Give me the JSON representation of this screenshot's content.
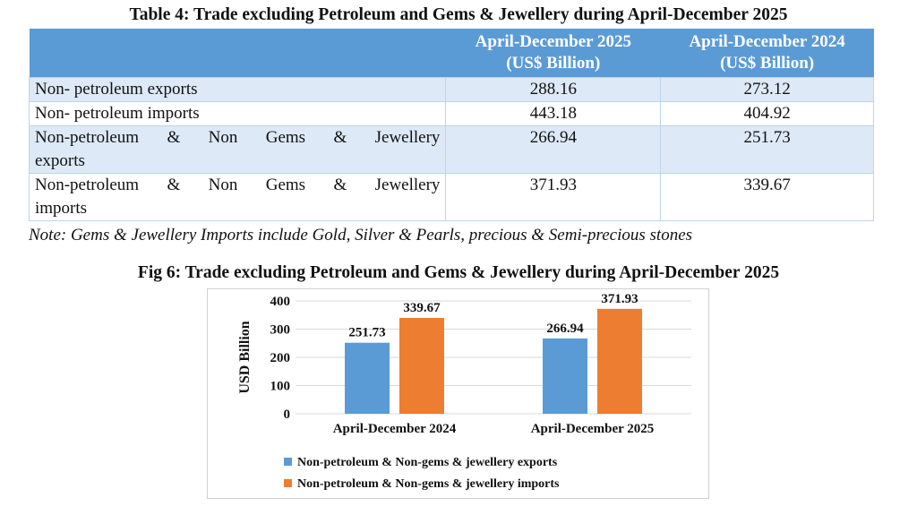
{
  "table": {
    "title": "Table 4: Trade excluding Petroleum and Gems & Jewellery during April-December 2025",
    "headers": [
      "",
      "April-December 2025",
      "April-December 2024"
    ],
    "header_unit": "(US$ Billion)",
    "rows": [
      {
        "label": "Non- petroleum exports",
        "v2025": "288.16",
        "v2024": "273.12"
      },
      {
        "label": "Non- petroleum imports",
        "v2025": "443.18",
        "v2024": "404.92"
      },
      {
        "label_line1": "Non-petroleum & Non Gems & Jewellery",
        "label_line2": "exports",
        "v2025": "266.94",
        "v2024": "251.73"
      },
      {
        "label_line1": "Non-petroleum & Non Gems & Jewellery",
        "label_line2": "imports",
        "v2025": "371.93",
        "v2024": "339.67"
      }
    ],
    "note": "Note: Gems & Jewellery Imports include Gold, Silver & Pearls, precious & Semi-precious stones"
  },
  "chart_data": {
    "type": "bar",
    "title": "Fig 6: Trade excluding Petroleum and Gems & Jewellery during April-December 2025",
    "categories": [
      "April-December 2024",
      "April-December 2025"
    ],
    "series": [
      {
        "name": "Non-petroleum & Non-gems & jewellery exports",
        "values": [
          251.73,
          266.94
        ],
        "color": "#5b9bd5"
      },
      {
        "name": "Non-petroleum & Non-gems & jewellery imports",
        "values": [
          339.67,
          371.93
        ],
        "color": "#ed7d31"
      }
    ],
    "data_labels": [
      [
        "251.73",
        "266.94"
      ],
      [
        "339.67",
        "371.93"
      ]
    ],
    "xlabel": "",
    "ylabel": "USD Billion",
    "ylim": [
      0,
      400
    ],
    "yticks": [
      "0",
      "100",
      "200",
      "300",
      "400"
    ],
    "grid": true,
    "legend": "bottom"
  }
}
